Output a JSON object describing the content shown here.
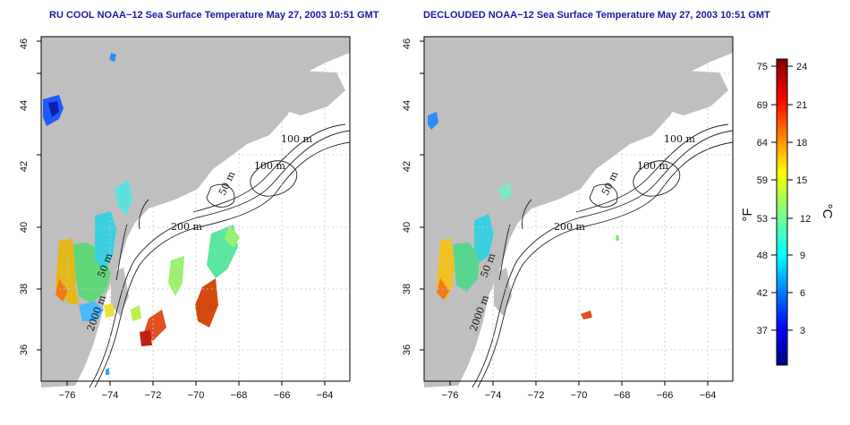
{
  "panels": [
    {
      "title": "RU COOL NOAA−12 Sea Surface Temperature May 27, 2003 10:51 GMT",
      "contour_labels": [
        "100 m",
        "100 m",
        "50 m",
        "200 m",
        "50 m",
        "2000 m"
      ]
    },
    {
      "title": "DECLOUDED NOAA−12 Sea Surface Temperature May 27, 2003 10:51 GMT",
      "contour_labels": [
        "100 m",
        "100 m",
        "50 m",
        "200 m",
        "50 m",
        "2000 m"
      ]
    }
  ],
  "axes": {
    "x_ticks": [
      "−76",
      "−74",
      "−72",
      "−70",
      "−68",
      "−66",
      "−64"
    ],
    "y_ticks": [
      "36",
      "38",
      "40",
      "42",
      "44",
      "46"
    ]
  },
  "colorbar": {
    "fahrenheit_ticks": [
      "75",
      "69",
      "64",
      "59",
      "53",
      "48",
      "42",
      "37"
    ],
    "celsius_ticks": [
      "24",
      "21",
      "18",
      "15",
      "12",
      "9",
      "6",
      "3"
    ],
    "fahrenheit_unit": "°F",
    "celsius_unit": "°C"
  },
  "colors": {
    "land": "#bfbfbf",
    "title": "#1a1aa6",
    "grid": "#c8c8c8",
    "contour": "#222222"
  }
}
